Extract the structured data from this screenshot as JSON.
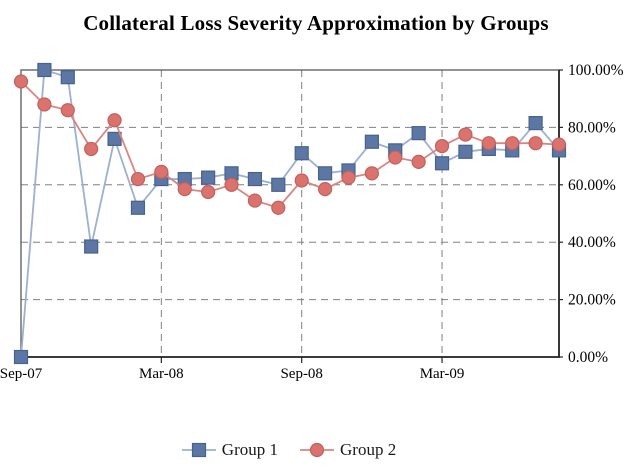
{
  "title": "Collateral Loss Severity Approximation by Groups",
  "chart_data": {
    "type": "line",
    "title": "Collateral Loss Severity Approximation by Groups",
    "x": [
      "Sep-07",
      "Oct-07",
      "Nov-07",
      "Dec-07",
      "Jan-08",
      "Feb-08",
      "Mar-08",
      "Apr-08",
      "May-08",
      "Jun-08",
      "Jul-08",
      "Aug-08",
      "Sep-08",
      "Oct-08",
      "Nov-08",
      "Dec-08",
      "Jan-09",
      "Feb-09",
      "Mar-09",
      "Apr-09",
      "May-09",
      "Jun-09",
      "Jul-09",
      "Aug-09"
    ],
    "x_tick_indices": [
      0,
      6,
      12,
      18
    ],
    "x_tick_labels": [
      "Sep-07",
      "Mar-08",
      "Sep-08",
      "Mar-09"
    ],
    "ylim": [
      0,
      100
    ],
    "y_ticks": [
      0,
      20,
      40,
      60,
      80,
      100
    ],
    "y_tick_labels": [
      "0.00%",
      "20.00%",
      "40.00%",
      "60.00%",
      "80.00%",
      "100.00%"
    ],
    "y_axis_side": "right",
    "grid": "dashed, horizontal every 20% and vertical every 6 months",
    "legend_position": "bottom",
    "series": [
      {
        "name": "Group 1",
        "marker": "square",
        "marker_color": "#5c77a3",
        "marker_border": "#47628e",
        "line_color": "#9db0d1",
        "values": [
          0,
          100,
          97.5,
          38.5,
          76,
          52,
          62,
          62,
          62.5,
          64,
          62,
          60,
          71,
          64,
          65,
          75,
          72,
          78,
          67.5,
          71.5,
          72.5,
          72,
          81.5,
          72
        ]
      },
      {
        "name": "Group 2",
        "marker": "circle",
        "marker_color": "#da736e",
        "marker_border": "#c3605c",
        "line_color": "#dd847e",
        "values": [
          96,
          88,
          86,
          72.5,
          82.5,
          62,
          64.5,
          58.5,
          57.5,
          60,
          54.5,
          52,
          61.5,
          58.5,
          62.5,
          64,
          69.5,
          68,
          73.5,
          77.5,
          74.5,
          74.5,
          74.5,
          74
        ]
      }
    ],
    "colors": {
      "grid": "#808080",
      "plot_border": "#595959",
      "axis": "#262626",
      "text": "#000000",
      "background": "#ffffff"
    }
  }
}
